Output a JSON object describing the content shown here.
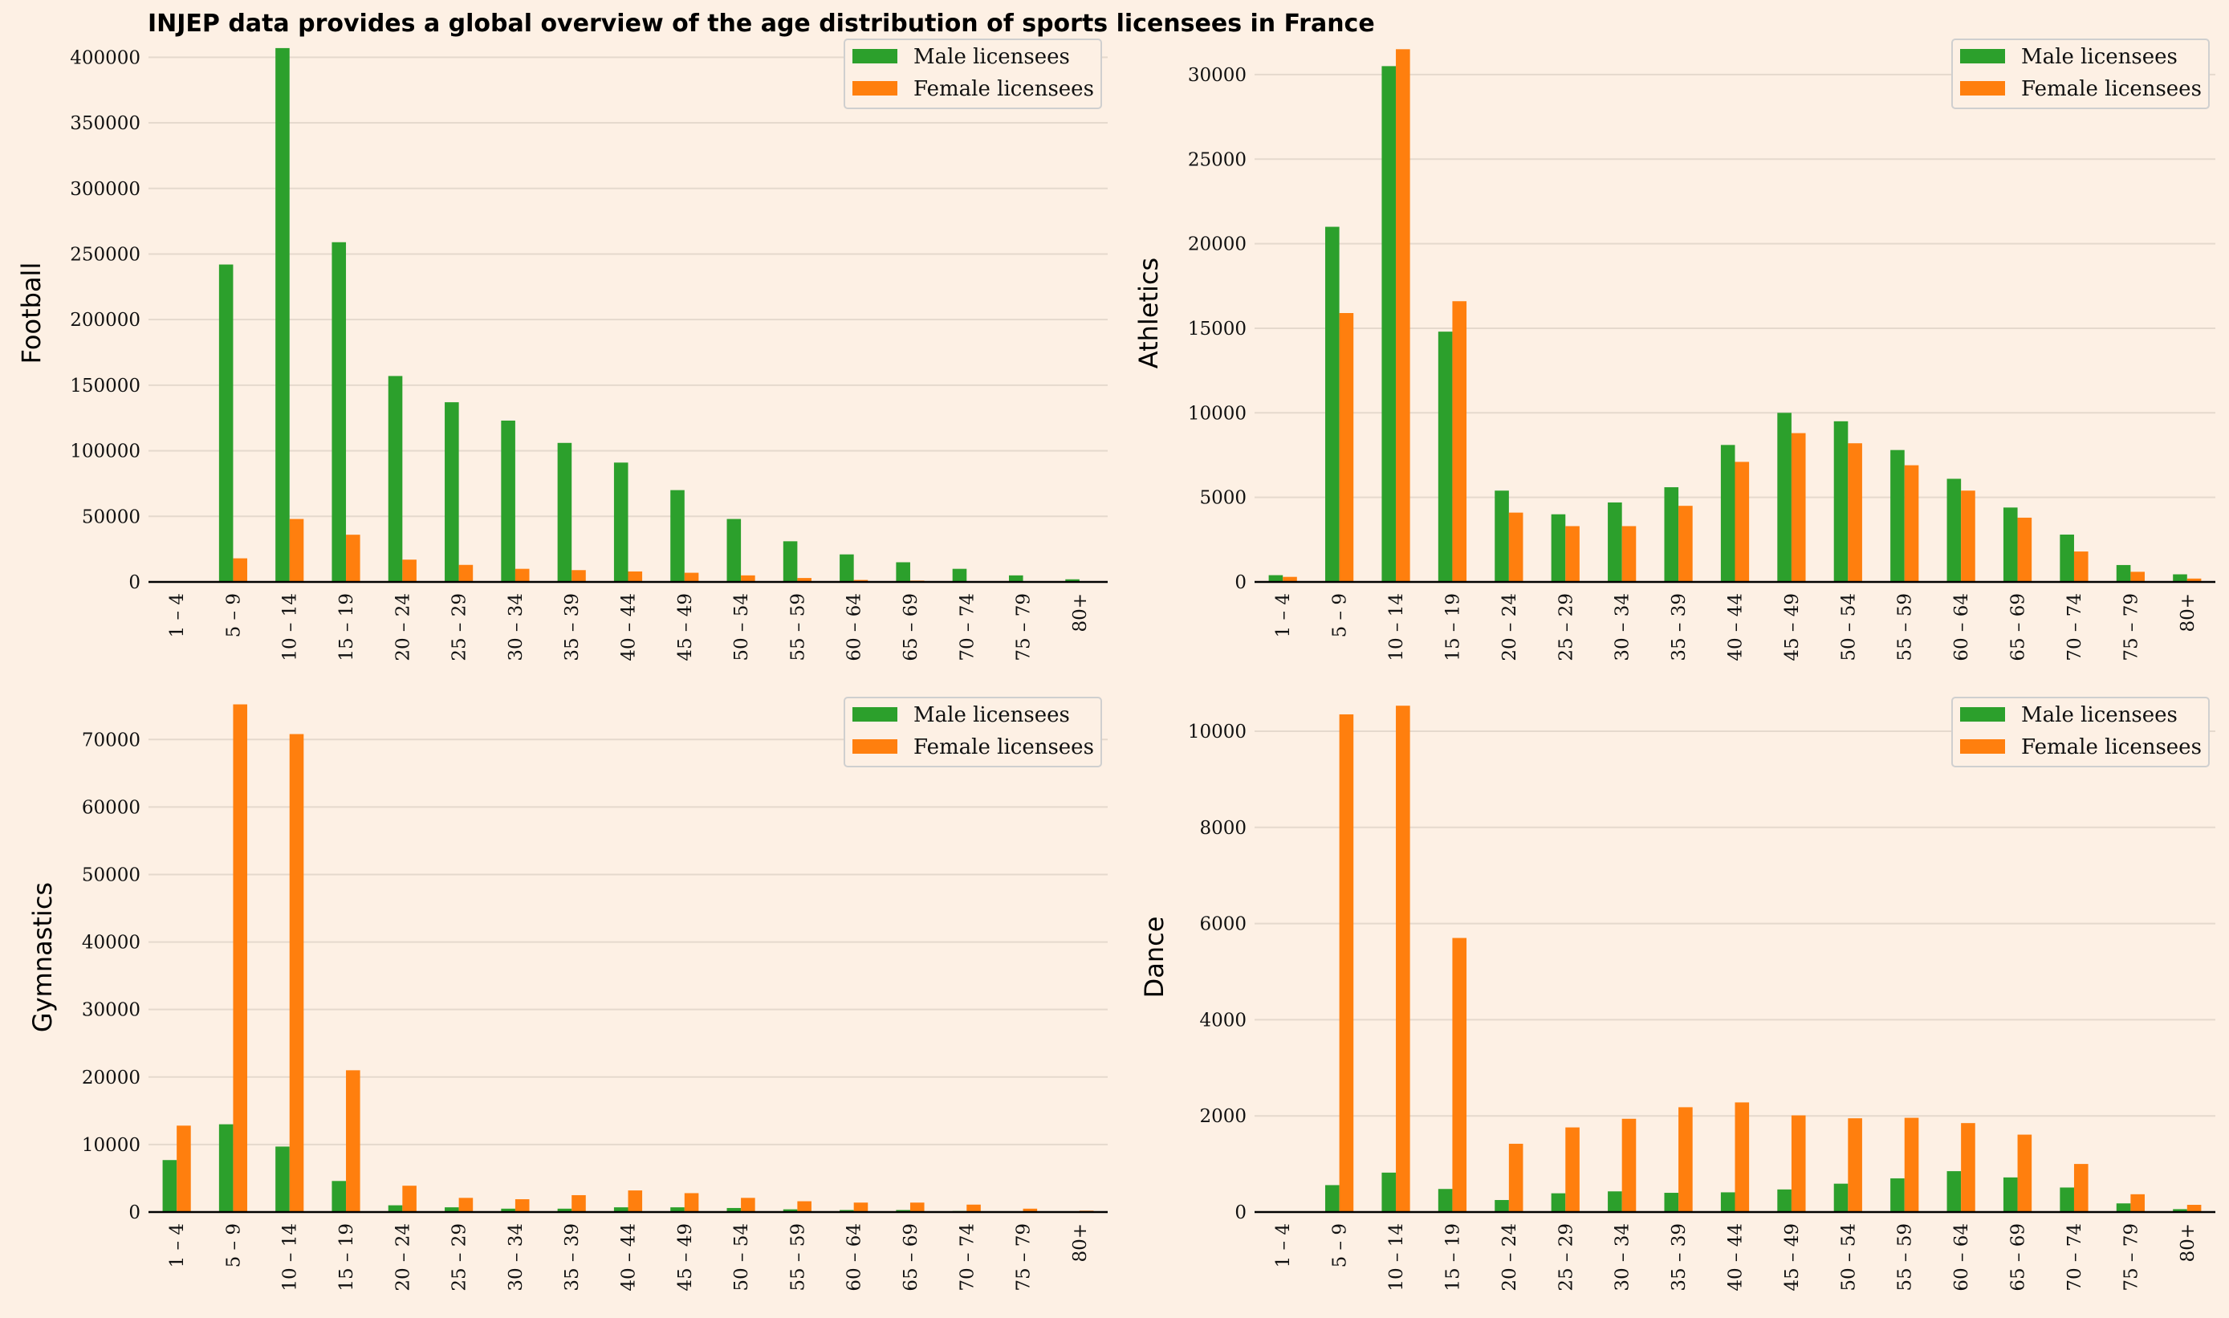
{
  "title": "INJEP data provides a global overview of the age distribution of sports licensees in France",
  "colors": {
    "male": "#2ca02c",
    "female": "#ff7f0e",
    "background": "#fdf0e4"
  },
  "chart_data": [
    {
      "type": "bar",
      "ylabel": "Football",
      "categories": [
        "1 – 4",
        "5 – 9",
        "10 – 14",
        "15 – 19",
        "20 – 24",
        "25 – 29",
        "30 – 34",
        "35 – 39",
        "40 – 44",
        "45 – 49",
        "50 – 54",
        "55 – 59",
        "60 – 64",
        "65 – 69",
        "70 – 74",
        "75 – 79",
        "80+"
      ],
      "ylim": [
        0,
        410000
      ],
      "yticks": [
        0,
        50000,
        100000,
        150000,
        200000,
        250000,
        300000,
        350000,
        400000
      ],
      "grid": true,
      "legend_position": "top-right",
      "series": [
        {
          "name": "Male licensees",
          "values": [
            0,
            242000,
            407000,
            259000,
            157000,
            137000,
            123000,
            106000,
            91000,
            70000,
            48000,
            31000,
            21000,
            15000,
            10000,
            5000,
            2000
          ]
        },
        {
          "name": "Female licensees",
          "values": [
            0,
            18000,
            48000,
            36000,
            17000,
            13000,
            10000,
            9000,
            8000,
            7000,
            5000,
            3000,
            1500,
            1000,
            500,
            200,
            100
          ]
        }
      ]
    },
    {
      "type": "bar",
      "ylabel": "Athletics",
      "categories": [
        "1 – 4",
        "5 – 9",
        "10 – 14",
        "15 – 19",
        "20 – 24",
        "25 – 29",
        "30 – 34",
        "35 – 39",
        "40 – 44",
        "45 – 49",
        "50 – 54",
        "55 – 59",
        "60 – 64",
        "65 – 69",
        "70 – 74",
        "75 – 79",
        "80+"
      ],
      "ylim": [
        0,
        31800
      ],
      "yticks": [
        0,
        5000,
        10000,
        15000,
        20000,
        25000,
        30000
      ],
      "grid": true,
      "legend_position": "top-right",
      "series": [
        {
          "name": "Male licensees",
          "values": [
            400,
            21000,
            30500,
            14800,
            5400,
            4000,
            4700,
            5600,
            8100,
            10000,
            9500,
            7800,
            6100,
            4400,
            2800,
            1000,
            450
          ]
        },
        {
          "name": "Female licensees",
          "values": [
            300,
            15900,
            31500,
            16600,
            4100,
            3300,
            3300,
            4500,
            7100,
            8800,
            8200,
            6900,
            5400,
            3800,
            1800,
            600,
            200
          ]
        }
      ]
    },
    {
      "type": "bar",
      "ylabel": "Gymnastics",
      "categories": [
        "1 – 4",
        "5 – 9",
        "10 – 14",
        "15 – 19",
        "20 – 24",
        "25 – 29",
        "30 – 34",
        "35 – 39",
        "40 – 44",
        "45 – 49",
        "50 – 54",
        "55 – 59",
        "60 – 64",
        "65 – 69",
        "70 – 74",
        "75 – 79",
        "80+"
      ],
      "ylim": [
        0,
        75500
      ],
      "yticks": [
        0,
        10000,
        20000,
        30000,
        40000,
        50000,
        60000,
        70000
      ],
      "grid": true,
      "legend_position": "top-right",
      "series": [
        {
          "name": "Male licensees",
          "values": [
            7700,
            13000,
            9700,
            4600,
            1000,
            700,
            500,
            500,
            700,
            700,
            600,
            400,
            300,
            300,
            150,
            100,
            50
          ]
        },
        {
          "name": "Female licensees",
          "values": [
            12800,
            75200,
            70800,
            21000,
            3900,
            2100,
            1900,
            2500,
            3200,
            2800,
            2100,
            1600,
            1400,
            1400,
            1100,
            500,
            200
          ]
        }
      ]
    },
    {
      "type": "bar",
      "ylabel": "Dance",
      "categories": [
        "1 – 4",
        "5 – 9",
        "10 – 14",
        "15 – 19",
        "20 – 24",
        "25 – 29",
        "30 – 34",
        "35 – 39",
        "40 – 44",
        "45 – 49",
        "50 – 54",
        "55 – 59",
        "60 – 64",
        "65 – 69",
        "70 – 74",
        "75 – 79",
        "80+"
      ],
      "ylim": [
        0,
        10600
      ],
      "yticks": [
        0,
        2000,
        4000,
        6000,
        8000,
        10000
      ],
      "grid": true,
      "legend_position": "top-right",
      "series": [
        {
          "name": "Male licensees",
          "values": [
            0,
            560,
            820,
            480,
            250,
            390,
            430,
            400,
            410,
            470,
            590,
            700,
            850,
            720,
            510,
            180,
            60
          ]
        },
        {
          "name": "Female licensees",
          "values": [
            0,
            10350,
            10530,
            5700,
            1420,
            1760,
            1940,
            2180,
            2280,
            2010,
            1950,
            1960,
            1850,
            1610,
            1000,
            370,
            150
          ]
        }
      ]
    }
  ]
}
